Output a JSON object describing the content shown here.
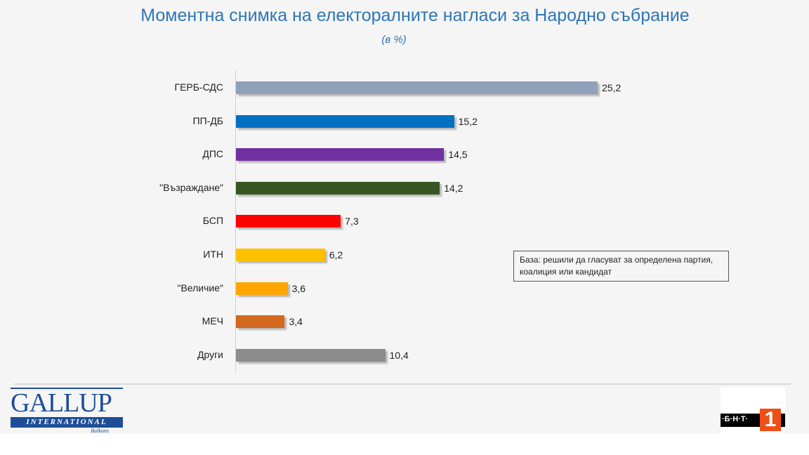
{
  "chart_data": {
    "type": "bar",
    "orientation": "horizontal",
    "title": "Моментна снимка на електоралните нагласи за Народно събрание",
    "subtitle": "(в %)",
    "categories": [
      "ГЕРБ-СДС",
      "ПП-ДБ",
      "ДПС",
      "\"Възраждане\"",
      "БСП",
      "ИТН",
      "\"Величие\"",
      "МЕЧ",
      "Други"
    ],
    "values": [
      25.2,
      15.2,
      14.5,
      14.2,
      7.3,
      6.2,
      3.6,
      3.4,
      10.4
    ],
    "value_labels": [
      "25,2",
      "15,2",
      "14,5",
      "14,2",
      "7,3",
      "6,2",
      "3,6",
      "3,4",
      "10,4"
    ],
    "colors": [
      "#8ea0ba",
      "#0070c0",
      "#7030a0",
      "#375623",
      "#ff0000",
      "#ffc000",
      "#ffa500",
      "#d2691e",
      "#8c8c8c"
    ],
    "xlim": [
      0,
      26
    ],
    "grid": false,
    "annotation": "База: решили да гласуват за определена партия, коалиция или кандидат"
  },
  "logos": {
    "gallup": {
      "main": "GALLUP",
      "band": "INTERNATIONAL",
      "small": "Balkans"
    },
    "bnt": {
      "text": "·Б·Н·Т·",
      "number": "1"
    }
  }
}
